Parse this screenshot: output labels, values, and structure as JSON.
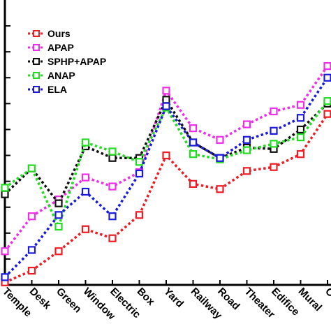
{
  "chart_data": {
    "type": "line",
    "title": "",
    "xlabel": "",
    "ylabel": "",
    "categories": [
      "Temple",
      "Desk",
      "Green",
      "Window",
      "Electric",
      "Box",
      "Yard",
      "Railway",
      "Road",
      "Theater",
      "Edifice",
      "Mural",
      "C"
    ],
    "ylim": [
      0,
      11
    ],
    "grid": false,
    "legend_position": "top-left",
    "series": [
      {
        "name": "Ours",
        "color": "#ee1c24",
        "values": [
          0.1,
          0.55,
          1.3,
          2.15,
          1.8,
          2.7,
          5.0,
          3.9,
          3.7,
          4.4,
          4.55,
          5.05,
          6.6
        ]
      },
      {
        "name": "APAP",
        "color": "#ee2ee8",
        "values": [
          1.3,
          2.65,
          3.3,
          4.15,
          3.8,
          4.35,
          7.5,
          6.05,
          5.6,
          6.2,
          6.7,
          6.95,
          8.45
        ]
      },
      {
        "name": "SPHP+APAP",
        "color": "#111111",
        "values": [
          3.5,
          4.5,
          3.15,
          5.35,
          4.9,
          4.9,
          7.15,
          5.5,
          4.9,
          5.3,
          5.25,
          6.0,
          7.0
        ]
      },
      {
        "name": "ANAP",
        "color": "#22dd22",
        "values": [
          3.75,
          4.5,
          2.25,
          5.5,
          5.15,
          4.75,
          6.85,
          5.05,
          4.85,
          5.2,
          5.45,
          5.7,
          7.1
        ]
      },
      {
        "name": "ELA",
        "color": "#1a1adc",
        "values": [
          0.3,
          1.35,
          2.7,
          3.6,
          2.65,
          4.3,
          6.9,
          5.5,
          4.9,
          5.6,
          5.95,
          6.45,
          8.0
        ]
      }
    ]
  }
}
